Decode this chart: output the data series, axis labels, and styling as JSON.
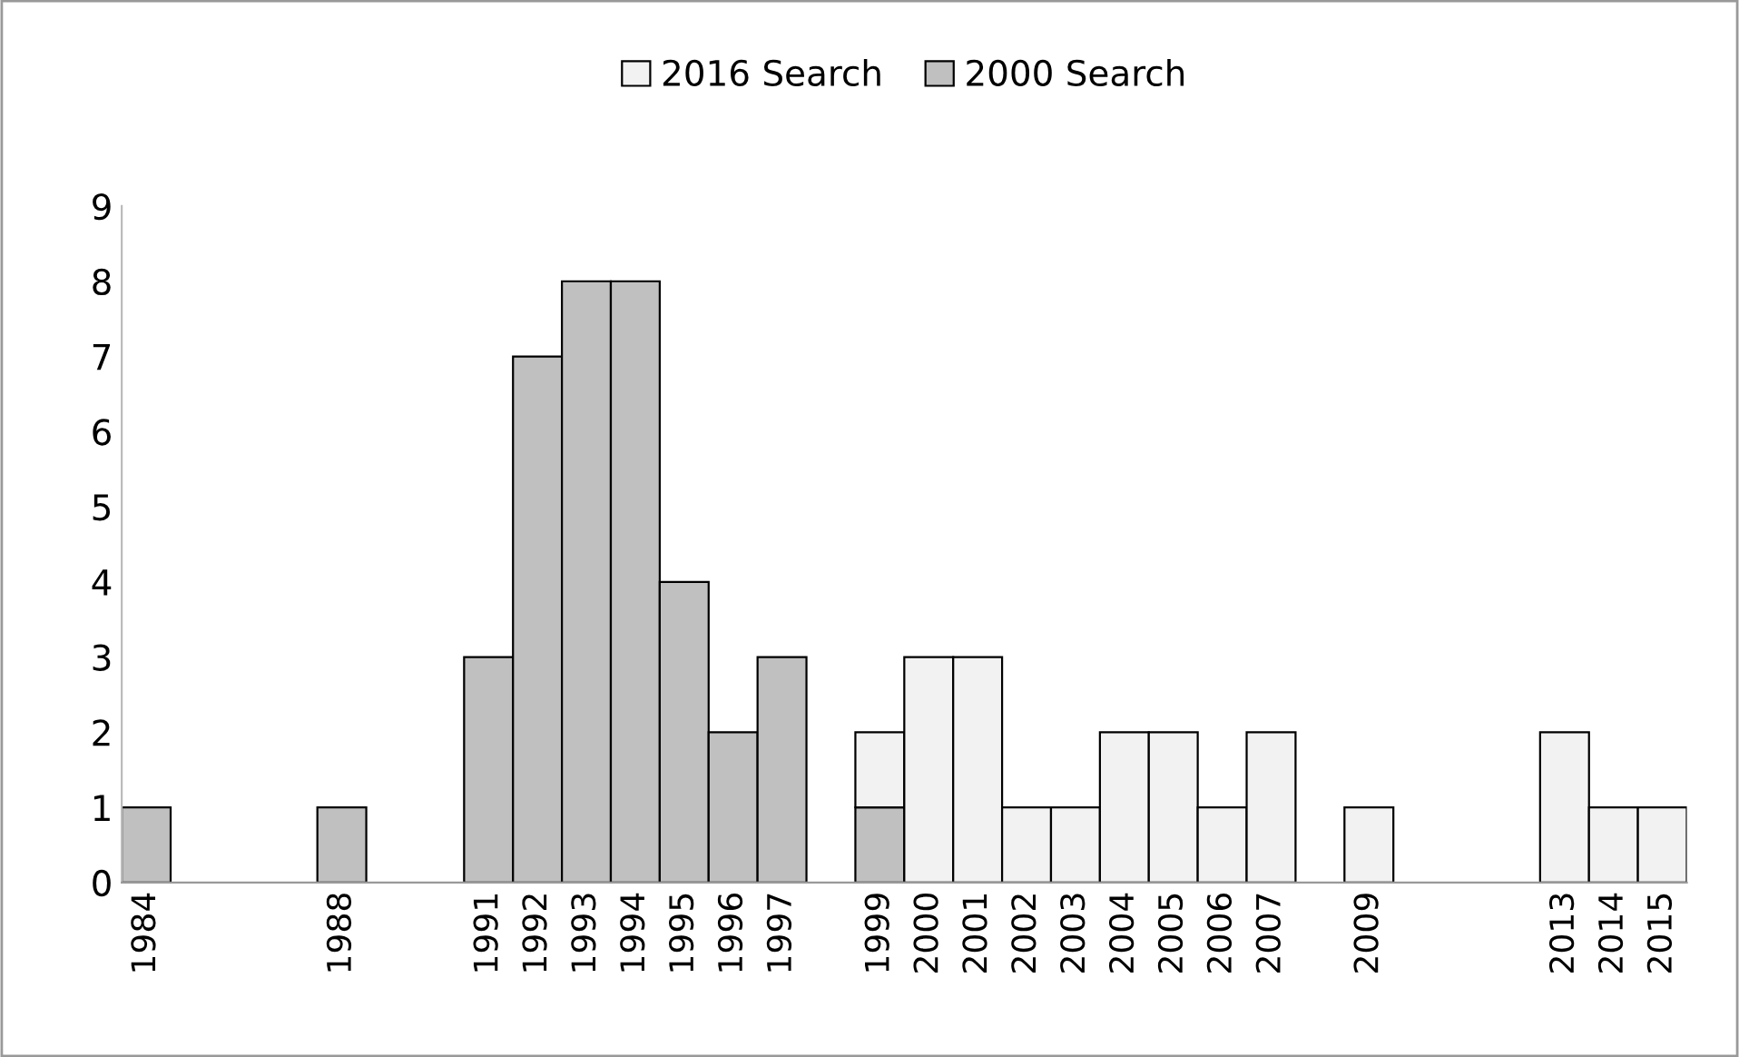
{
  "chart_data": {
    "type": "bar",
    "stacked": true,
    "categories": [
      "1984",
      null,
      null,
      null,
      "1988",
      null,
      null,
      "1991",
      "1992",
      "1993",
      "1994",
      "1995",
      "1996",
      "1997",
      null,
      "1999",
      "2000",
      "2001",
      "2002",
      "2003",
      "2004",
      "2005",
      "2006",
      "2007",
      null,
      "2009",
      null,
      null,
      null,
      "2013",
      "2014",
      "2015"
    ],
    "series": [
      {
        "name": "2000 Search",
        "color": "#c0c0c0",
        "values": [
          1,
          null,
          null,
          null,
          1,
          null,
          null,
          3,
          7,
          8,
          8,
          4,
          2,
          3,
          null,
          1,
          null,
          null,
          null,
          null,
          null,
          null,
          null,
          null,
          null,
          null,
          null,
          null,
          null,
          null,
          null,
          null
        ]
      },
      {
        "name": "2016 Search",
        "color": "#f2f2f2",
        "values": [
          null,
          null,
          null,
          null,
          null,
          null,
          null,
          null,
          null,
          null,
          null,
          null,
          null,
          null,
          null,
          1,
          3,
          3,
          1,
          1,
          2,
          2,
          1,
          2,
          null,
          1,
          null,
          null,
          null,
          2,
          1,
          1
        ]
      }
    ],
    "ylim": [
      0,
      9
    ],
    "yticks": [
      0,
      1,
      2,
      3,
      4,
      5,
      6,
      7,
      8,
      9
    ],
    "grid": false,
    "legend": "top"
  }
}
